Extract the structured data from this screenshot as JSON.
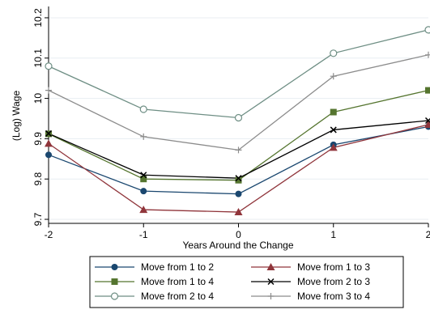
{
  "chart_data": {
    "type": "line",
    "xlabel": "Years Around the Change",
    "ylabel": "(Log) Wage",
    "x": [
      -2,
      -1,
      0,
      1,
      2
    ],
    "xlim": [
      -2,
      2
    ],
    "ylim": [
      9.69,
      10.22
    ],
    "xticks": [
      -2,
      -1,
      0,
      1,
      2
    ],
    "xtick_labels": [
      "-2",
      "-1",
      "0",
      "1",
      "2"
    ],
    "yticks": [
      9.7,
      9.8,
      9.9,
      10,
      10.1,
      10.2
    ],
    "ytick_labels": [
      "9.7",
      "9.8",
      "9.9",
      "10",
      "10.1",
      "10.2"
    ],
    "grid": true,
    "legend_position": "bottom",
    "series": [
      {
        "name": "Move from 1 to 2",
        "values": [
          9.86,
          9.77,
          9.763,
          9.885,
          9.93
        ],
        "color": "#1a476f",
        "marker": "circle"
      },
      {
        "name": "Move from 1 to 3",
        "values": [
          9.888,
          9.724,
          9.718,
          9.878,
          9.935
        ],
        "color": "#90353b",
        "marker": "triangle"
      },
      {
        "name": "Move from 1 to 4",
        "values": [
          9.912,
          9.8,
          9.797,
          9.966,
          10.02
        ],
        "color": "#55752f",
        "marker": "square"
      },
      {
        "name": "Move from 2 to 3",
        "values": [
          9.913,
          9.81,
          9.802,
          9.922,
          9.945
        ],
        "color": "#000000",
        "marker": "x"
      },
      {
        "name": "Move from 2 to 4",
        "values": [
          10.08,
          9.973,
          9.952,
          10.112,
          10.17
        ],
        "color": "#6e8e84",
        "marker": "hollow-circle"
      },
      {
        "name": "Move from 3 to 4",
        "values": [
          10.02,
          9.905,
          9.872,
          10.055,
          10.108
        ],
        "color": "#8c8c8c",
        "marker": "plus"
      }
    ]
  }
}
